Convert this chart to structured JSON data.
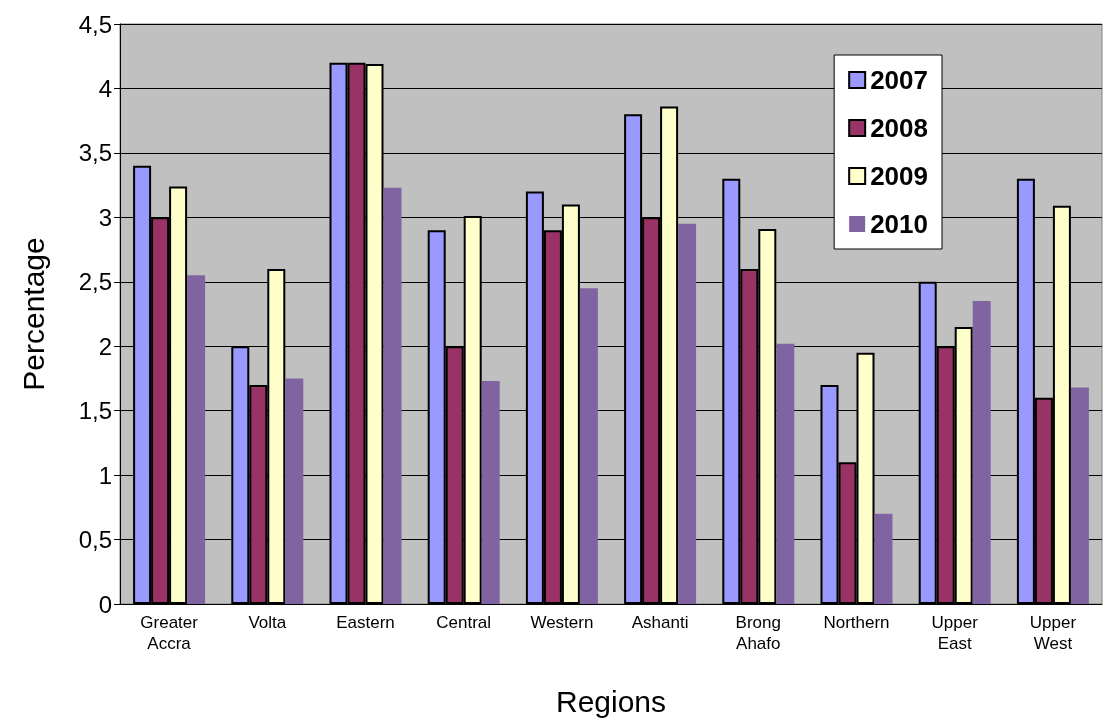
{
  "chart_data": {
    "type": "bar",
    "xlabel": "Regions",
    "ylabel": "Percentage",
    "categories": [
      "Greater\nAccra",
      "Volta",
      "Eastern",
      "Central",
      "Western",
      "Ashanti",
      "Brong\nAhafo",
      "Northern",
      "Upper\nEast",
      "Upper\nWest"
    ],
    "series": [
      {
        "name": "2007",
        "color": "#9999ff",
        "values": [
          3.4,
          2.0,
          4.2,
          2.9,
          3.2,
          3.8,
          3.3,
          1.7,
          2.5,
          3.3
        ]
      },
      {
        "name": "2008",
        "color": "#993366",
        "values": [
          3.0,
          1.7,
          4.2,
          2.0,
          2.9,
          3.0,
          2.6,
          1.1,
          2.0,
          1.6
        ]
      },
      {
        "name": "2009",
        "color": "#ffffcc",
        "values": [
          3.24,
          2.6,
          4.19,
          3.01,
          3.1,
          3.86,
          2.91,
          1.95,
          2.15,
          3.09
        ]
      },
      {
        "name": "2010",
        "color": "#8064a2",
        "values": [
          2.55,
          1.75,
          3.23,
          1.73,
          2.45,
          2.95,
          2.02,
          0.7,
          2.35,
          1.68
        ]
      }
    ],
    "ylim": [
      0,
      4.5
    ],
    "yticks": [
      0,
      {
        "value": 0.5,
        "label": "0,5"
      },
      1,
      {
        "value": 1.5,
        "label": "1,5"
      },
      2,
      {
        "value": 2.5,
        "label": "2,5"
      },
      3,
      {
        "value": 3.5,
        "label": "3,5"
      },
      4,
      {
        "value": 4.5,
        "label": "4,5"
      }
    ],
    "grid": "y",
    "legend": "top right"
  }
}
